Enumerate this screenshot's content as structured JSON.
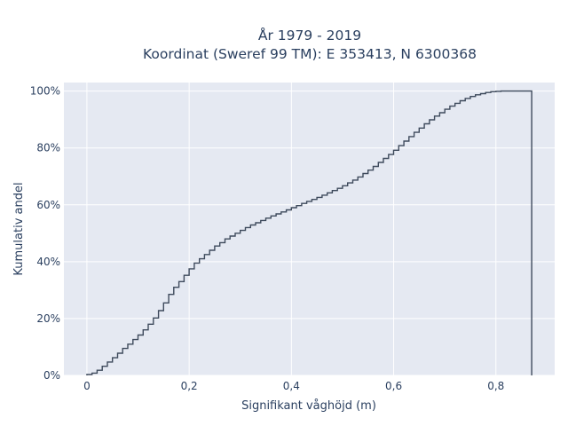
{
  "chart_data": {
    "type": "line",
    "line_shape": "step",
    "title": "År 1979 - 2019",
    "subtitle": "Koordinat (Sweref 99 TM): E 353413, N 6300368",
    "xlabel": "Signifikant våghöjd (m)",
    "ylabel": "Kumulativ andel",
    "xlim": [
      -0.045,
      0.915
    ],
    "ylim": [
      0,
      1.03
    ],
    "x_ticks": [
      0,
      0.2,
      0.4,
      0.6,
      0.8
    ],
    "x_tick_labels": [
      "0",
      "0,2",
      "0,4",
      "0,6",
      "0,8"
    ],
    "y_ticks": [
      0,
      0.2,
      0.4,
      0.6,
      0.8,
      1.0
    ],
    "y_tick_labels": [
      "0%",
      "20%",
      "40%",
      "60%",
      "80%",
      "100%"
    ],
    "grid": true,
    "background_color": "#e5e9f2",
    "grid_color": "#ffffff",
    "line_color": "#3e4a5c",
    "series": [
      {
        "x": [
          0,
          0.01,
          0.02,
          0.03,
          0.04,
          0.05,
          0.06,
          0.07,
          0.08,
          0.09,
          0.1,
          0.11,
          0.12,
          0.13,
          0.14,
          0.15,
          0.16,
          0.17,
          0.18,
          0.19,
          0.2,
          0.21,
          0.22,
          0.23,
          0.24,
          0.25,
          0.26,
          0.27,
          0.28,
          0.29,
          0.3,
          0.31,
          0.32,
          0.33,
          0.34,
          0.35,
          0.36,
          0.37,
          0.38,
          0.39,
          0.4,
          0.41,
          0.42,
          0.43,
          0.44,
          0.45,
          0.46,
          0.47,
          0.48,
          0.49,
          0.5,
          0.51,
          0.52,
          0.53,
          0.54,
          0.55,
          0.56,
          0.57,
          0.58,
          0.59,
          0.6,
          0.61,
          0.62,
          0.63,
          0.64,
          0.65,
          0.66,
          0.67,
          0.68,
          0.69,
          0.7,
          0.71,
          0.72,
          0.73,
          0.74,
          0.75,
          0.76,
          0.77,
          0.78,
          0.79,
          0.8,
          0.81,
          0.82,
          0.83,
          0.84,
          0.85,
          0.86,
          0.87
        ],
        "y": [
          0.003,
          0.008,
          0.018,
          0.032,
          0.047,
          0.062,
          0.078,
          0.095,
          0.11,
          0.126,
          0.142,
          0.16,
          0.18,
          0.202,
          0.228,
          0.255,
          0.285,
          0.31,
          0.33,
          0.352,
          0.375,
          0.395,
          0.41,
          0.425,
          0.44,
          0.455,
          0.467,
          0.48,
          0.49,
          0.5,
          0.51,
          0.52,
          0.529,
          0.537,
          0.545,
          0.553,
          0.561,
          0.568,
          0.575,
          0.582,
          0.59,
          0.597,
          0.605,
          0.612,
          0.619,
          0.626,
          0.634,
          0.642,
          0.65,
          0.658,
          0.667,
          0.677,
          0.687,
          0.698,
          0.71,
          0.722,
          0.735,
          0.749,
          0.763,
          0.777,
          0.792,
          0.808,
          0.824,
          0.84,
          0.855,
          0.87,
          0.885,
          0.899,
          0.912,
          0.924,
          0.936,
          0.947,
          0.957,
          0.966,
          0.974,
          0.981,
          0.987,
          0.991,
          0.995,
          0.998,
          0.999,
          1.0,
          1.0,
          1.0,
          1.0,
          1.0,
          1.0,
          1.0
        ]
      }
    ]
  }
}
